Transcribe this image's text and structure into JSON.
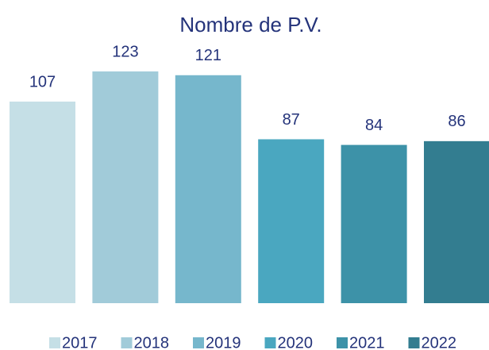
{
  "chart_data": {
    "type": "bar",
    "title": "Nombre de P.V.",
    "categories": [
      "2017",
      "2018",
      "2019",
      "2020",
      "2021",
      "2022"
    ],
    "values": [
      107,
      123,
      121,
      87,
      84,
      86
    ],
    "colors": [
      "#c5dfe6",
      "#a1cbd9",
      "#76b7cc",
      "#4aa7c0",
      "#3d92a8",
      "#337d90"
    ],
    "ylim": [
      0,
      130
    ],
    "legend": "bottom"
  }
}
